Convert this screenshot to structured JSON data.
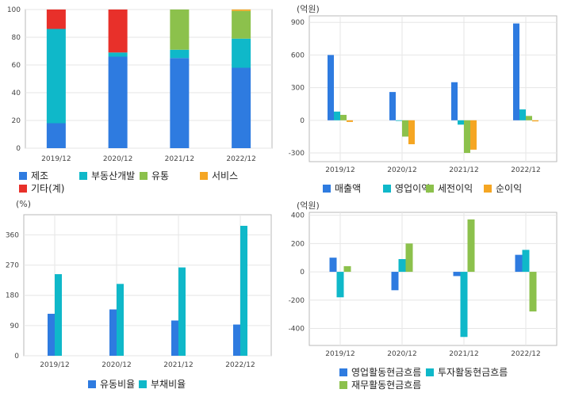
{
  "colors": {
    "blue": "#2e7be0",
    "cyan": "#0fb8c9",
    "green": "#8cc14c",
    "orange": "#f5a623",
    "red": "#e8302a",
    "grid": "#e6e6e6",
    "frame": "#b9b9b9"
  },
  "chart_data": [
    {
      "id": "sales-mix",
      "type": "bar",
      "stacked": true,
      "categories": [
        "2019/12",
        "2020/12",
        "2021/12",
        "2022/12"
      ],
      "ylim": [
        0,
        100
      ],
      "yticks": [
        0,
        20,
        40,
        60,
        80,
        100
      ],
      "grid": true,
      "legend_position": "bottom",
      "series": [
        {
          "name": "제조",
          "color": "#2e7be0",
          "values": [
            18,
            66,
            65,
            58
          ]
        },
        {
          "name": "부동산개발",
          "color": "#0fb8c9",
          "values": [
            68,
            3,
            6,
            21
          ]
        },
        {
          "name": "유통",
          "color": "#8cc14c",
          "values": [
            0,
            0,
            29,
            20
          ]
        },
        {
          "name": "서비스",
          "color": "#f5a623",
          "values": [
            0,
            0,
            0,
            1
          ]
        },
        {
          "name": "기타(계)",
          "color": "#e8302a",
          "values": [
            14,
            31,
            0,
            0
          ]
        }
      ]
    },
    {
      "id": "income",
      "type": "bar",
      "unit": "(억원)",
      "categories": [
        "2019/12",
        "2020/12",
        "2021/12",
        "2022/12"
      ],
      "ylim": [
        -380,
        960
      ],
      "yticks": [
        -300,
        0,
        300,
        600,
        900
      ],
      "grid": true,
      "legend_position": "bottom",
      "series": [
        {
          "name": "매출액",
          "color": "#2e7be0",
          "values": [
            600,
            260,
            350,
            890
          ]
        },
        {
          "name": "영업이익",
          "color": "#0fb8c9",
          "values": [
            80,
            -5,
            -40,
            100
          ]
        },
        {
          "name": "세전이익",
          "color": "#8cc14c",
          "values": [
            50,
            -150,
            -300,
            40
          ]
        },
        {
          "name": "순이익",
          "color": "#f5a623",
          "values": [
            -15,
            -220,
            -270,
            -10
          ]
        }
      ]
    },
    {
      "id": "ratios",
      "type": "bar",
      "unit": "(%)",
      "categories": [
        "2019/12",
        "2020/12",
        "2021/12",
        "2022/12"
      ],
      "ylim": [
        0,
        420
      ],
      "yticks": [
        0,
        90,
        180,
        270,
        360
      ],
      "grid": true,
      "legend_position": "bottom",
      "series": [
        {
          "name": "유동비율",
          "color": "#2e7be0",
          "values": [
            125,
            138,
            105,
            93
          ]
        },
        {
          "name": "부채비율",
          "color": "#0fb8c9",
          "values": [
            243,
            214,
            263,
            387
          ]
        }
      ]
    },
    {
      "id": "cashflow",
      "type": "bar",
      "unit": "(억원)",
      "categories": [
        "2019/12",
        "2020/12",
        "2021/12",
        "2022/12"
      ],
      "ylim": [
        -520,
        420
      ],
      "yticks": [
        -400,
        -200,
        0,
        200,
        400
      ],
      "grid": true,
      "legend_position": "bottom",
      "series": [
        {
          "name": "영업활동현금흐름",
          "color": "#2e7be0",
          "values": [
            100,
            -130,
            -30,
            120
          ]
        },
        {
          "name": "투자활동현금흐름",
          "color": "#0fb8c9",
          "values": [
            -180,
            90,
            -460,
            155
          ]
        },
        {
          "name": "재무활동현금흐름",
          "color": "#8cc14c",
          "values": [
            40,
            200,
            370,
            -280
          ]
        }
      ]
    }
  ]
}
